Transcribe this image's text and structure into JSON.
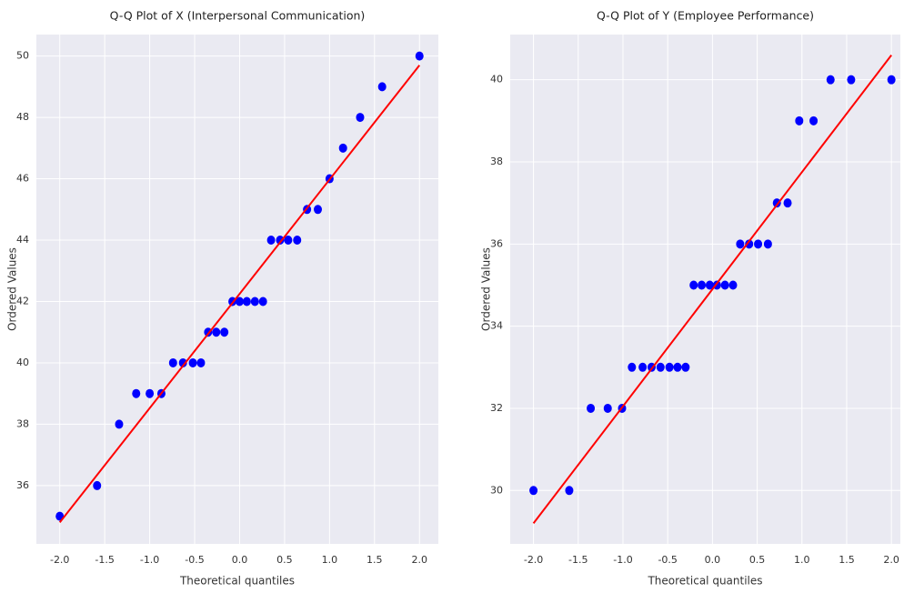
{
  "chart_data": [
    {
      "type": "scatter",
      "title": "Q-Q Plot of X (Interpersonal Communication)",
      "xlabel": "Theoretical quantiles",
      "ylabel": "Ordered Values",
      "x": [
        -2.0,
        -1.585,
        -1.34,
        -1.15,
        -1.0,
        -0.87,
        -0.74,
        -0.63,
        -0.52,
        -0.43,
        -0.35,
        -0.26,
        -0.17,
        -0.08,
        0.0,
        0.08,
        0.17,
        0.26,
        0.35,
        0.45,
        0.54,
        0.64,
        0.75,
        0.87,
        1.0,
        1.15,
        1.34,
        1.585,
        2.0
      ],
      "values": [
        35,
        36,
        38,
        39,
        39,
        39,
        40,
        40,
        40,
        40,
        41,
        41,
        41,
        42,
        42,
        42,
        42,
        42,
        44,
        44,
        44,
        44,
        45,
        45,
        46,
        47,
        48,
        49,
        50
      ],
      "color": "#0000ff",
      "fit_line": {
        "x": [
          -2.0,
          2.0
        ],
        "y": [
          34.8,
          49.7
        ],
        "color": "#ff0000"
      },
      "xlim": [
        -2.26,
        2.21
      ],
      "ylim": [
        34.1,
        50.7
      ],
      "xticks": [
        {
          "value": -2,
          "label": "-2.0"
        },
        -1.5,
        {
          "value": -1,
          "label": "-1.0"
        },
        -0.5,
        {
          "value": 0,
          "label": "0.0"
        },
        0.5,
        {
          "value": 1,
          "label": "1.0"
        },
        1.5,
        {
          "value": 2,
          "label": "2.0"
        }
      ],
      "yticks": [
        36,
        38,
        40,
        42,
        44,
        46,
        48,
        50
      ],
      "grid": true
    },
    {
      "type": "scatter",
      "title": "Q-Q Plot of Y (Employee Performance)",
      "xlabel": "Theoretical quantiles",
      "ylabel": "Ordered Values",
      "x": [
        -2.0,
        -1.6,
        -1.36,
        -1.17,
        -1.01,
        -0.9,
        -0.78,
        -0.68,
        -0.58,
        -0.48,
        -0.39,
        -0.3,
        -0.21,
        -0.12,
        -0.03,
        0.05,
        0.14,
        0.23,
        0.31,
        0.41,
        0.51,
        0.62,
        0.72,
        0.84,
        0.97,
        1.13,
        1.32,
        1.55,
        2.0
      ],
      "values": [
        30,
        30,
        32,
        32,
        32,
        33,
        33,
        33,
        33,
        33,
        33,
        33,
        35,
        35,
        35,
        35,
        35,
        35,
        36,
        36,
        36,
        36,
        37,
        37,
        39,
        39,
        40,
        40,
        40
      ],
      "color": "#0000ff",
      "fit_line": {
        "x": [
          -2.0,
          2.0
        ],
        "y": [
          29.2,
          40.6
        ],
        "color": "#ff0000"
      },
      "xlim": [
        -2.26,
        2.1
      ],
      "ylim": [
        28.7,
        41.1
      ],
      "xticks": [
        {
          "value": -2,
          "label": "-2.0"
        },
        -1.5,
        {
          "value": -1,
          "label": "-1.0"
        },
        -0.5,
        {
          "value": 0,
          "label": "0.0"
        },
        0.5,
        {
          "value": 1,
          "label": "1.0"
        },
        1.5,
        {
          "value": 2,
          "label": "2.0"
        }
      ],
      "yticks": [
        30,
        32,
        34,
        36,
        38,
        40
      ],
      "grid": true
    }
  ]
}
